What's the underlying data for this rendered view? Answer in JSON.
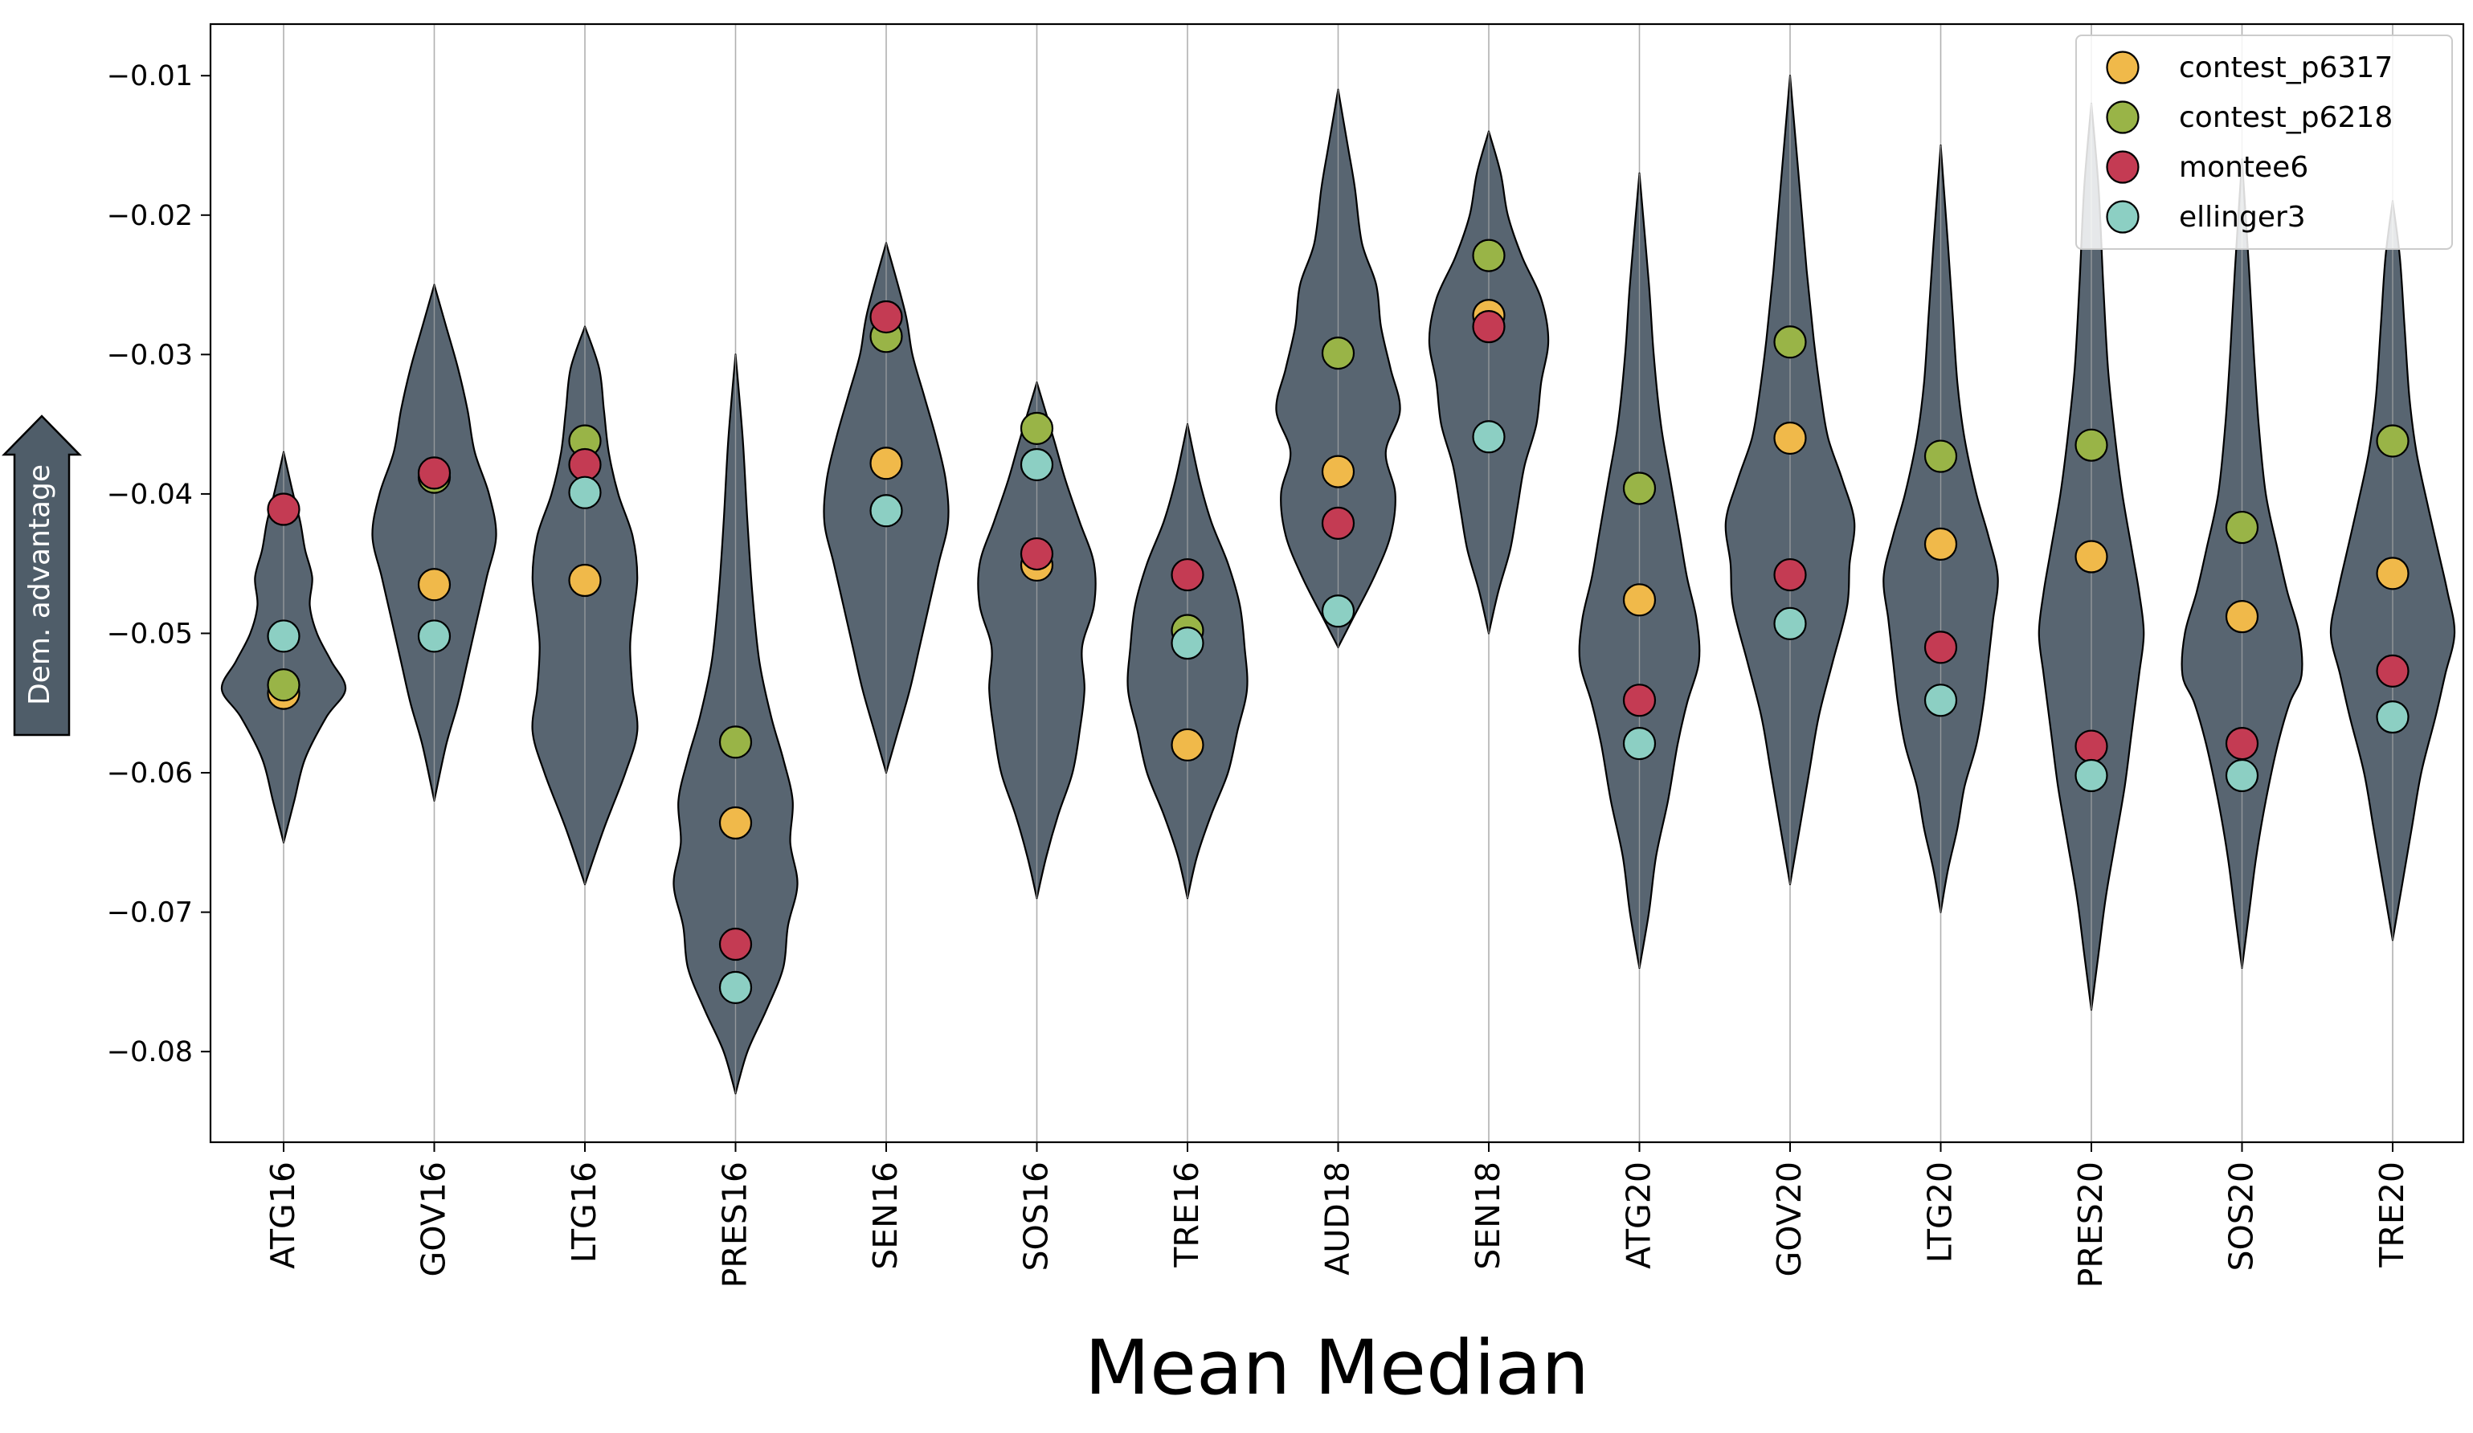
{
  "chart_data": {
    "type": "violin",
    "title": "",
    "xlabel": "Mean Median",
    "ylabel": "",
    "ylim": [
      -0.0865,
      -0.0063
    ],
    "yticks": [
      -0.01,
      -0.02,
      -0.03,
      -0.04,
      -0.05,
      -0.06,
      -0.07,
      -0.08
    ],
    "ytick_labels": [
      "−0.01",
      "−0.02",
      "−0.03",
      "−0.04",
      "−0.05",
      "−0.06",
      "−0.07",
      "−0.08"
    ],
    "grid": "vertical",
    "legend_position": "top-right",
    "direction_arrow": {
      "label": "Dem. advantage",
      "direction": "up"
    },
    "categories": [
      "ATG16",
      "GOV16",
      "LTG16",
      "PRES16",
      "SEN16",
      "SOS16",
      "TRE16",
      "AUD18",
      "SEN18",
      "ATG20",
      "GOV20",
      "LTG20",
      "PRES20",
      "SOS20",
      "TRE20"
    ],
    "distributions": [
      {
        "category": "ATG16",
        "min": -0.065,
        "max": -0.037,
        "profile": [
          [
            -0.065,
            0.0
          ],
          [
            -0.062,
            0.045
          ],
          [
            -0.059,
            0.09
          ],
          [
            -0.056,
            0.18
          ],
          [
            -0.054,
            0.26
          ],
          [
            -0.052,
            0.2
          ],
          [
            -0.05,
            0.14
          ],
          [
            -0.048,
            0.11
          ],
          [
            -0.046,
            0.12
          ],
          [
            -0.044,
            0.09
          ],
          [
            -0.042,
            0.07
          ],
          [
            -0.04,
            0.04
          ],
          [
            -0.037,
            0.0
          ]
        ]
      },
      {
        "category": "GOV16",
        "min": -0.062,
        "max": -0.025,
        "profile": [
          [
            -0.062,
            0.0
          ],
          [
            -0.058,
            0.05
          ],
          [
            -0.055,
            0.1
          ],
          [
            -0.052,
            0.14
          ],
          [
            -0.049,
            0.18
          ],
          [
            -0.046,
            0.22
          ],
          [
            -0.043,
            0.26
          ],
          [
            -0.04,
            0.23
          ],
          [
            -0.037,
            0.17
          ],
          [
            -0.034,
            0.14
          ],
          [
            -0.031,
            0.1
          ],
          [
            -0.028,
            0.05
          ],
          [
            -0.025,
            0.0
          ]
        ]
      },
      {
        "category": "LTG16",
        "min": -0.068,
        "max": -0.028,
        "profile": [
          [
            -0.068,
            0.0
          ],
          [
            -0.064,
            0.08
          ],
          [
            -0.06,
            0.17
          ],
          [
            -0.057,
            0.22
          ],
          [
            -0.054,
            0.2
          ],
          [
            -0.051,
            0.19
          ],
          [
            -0.049,
            0.2
          ],
          [
            -0.046,
            0.22
          ],
          [
            -0.043,
            0.2
          ],
          [
            -0.04,
            0.14
          ],
          [
            -0.037,
            0.1
          ],
          [
            -0.034,
            0.08
          ],
          [
            -0.031,
            0.06
          ],
          [
            -0.028,
            0.0
          ]
        ]
      },
      {
        "category": "PRES16",
        "min": -0.083,
        "max": -0.03,
        "profile": [
          [
            -0.083,
            0.0
          ],
          [
            -0.08,
            0.05
          ],
          [
            -0.077,
            0.13
          ],
          [
            -0.074,
            0.2
          ],
          [
            -0.071,
            0.22
          ],
          [
            -0.068,
            0.26
          ],
          [
            -0.065,
            0.23
          ],
          [
            -0.062,
            0.24
          ],
          [
            -0.059,
            0.2
          ],
          [
            -0.056,
            0.15
          ],
          [
            -0.052,
            0.1
          ],
          [
            -0.047,
            0.07
          ],
          [
            -0.042,
            0.05
          ],
          [
            -0.036,
            0.03
          ],
          [
            -0.03,
            0.0
          ]
        ]
      },
      {
        "category": "SEN16",
        "min": -0.06,
        "max": -0.022,
        "profile": [
          [
            -0.06,
            0.0
          ],
          [
            -0.057,
            0.05
          ],
          [
            -0.054,
            0.1
          ],
          [
            -0.051,
            0.14
          ],
          [
            -0.048,
            0.18
          ],
          [
            -0.045,
            0.22
          ],
          [
            -0.042,
            0.26
          ],
          [
            -0.039,
            0.25
          ],
          [
            -0.036,
            0.21
          ],
          [
            -0.033,
            0.16
          ],
          [
            -0.03,
            0.11
          ],
          [
            -0.027,
            0.08
          ],
          [
            -0.022,
            0.0
          ]
        ]
      },
      {
        "category": "SOS16",
        "min": -0.069,
        "max": -0.032,
        "profile": [
          [
            -0.069,
            0.0
          ],
          [
            -0.066,
            0.04
          ],
          [
            -0.063,
            0.09
          ],
          [
            -0.06,
            0.15
          ],
          [
            -0.057,
            0.18
          ],
          [
            -0.054,
            0.2
          ],
          [
            -0.051,
            0.19
          ],
          [
            -0.048,
            0.24
          ],
          [
            -0.045,
            0.24
          ],
          [
            -0.042,
            0.18
          ],
          [
            -0.039,
            0.12
          ],
          [
            -0.036,
            0.07
          ],
          [
            -0.032,
            0.0
          ]
        ]
      },
      {
        "category": "TRE16",
        "min": -0.069,
        "max": -0.035,
        "profile": [
          [
            -0.069,
            0.0
          ],
          [
            -0.066,
            0.04
          ],
          [
            -0.063,
            0.1
          ],
          [
            -0.06,
            0.17
          ],
          [
            -0.057,
            0.21
          ],
          [
            -0.054,
            0.25
          ],
          [
            -0.051,
            0.24
          ],
          [
            -0.048,
            0.22
          ],
          [
            -0.045,
            0.17
          ],
          [
            -0.042,
            0.1
          ],
          [
            -0.039,
            0.05
          ],
          [
            -0.035,
            0.0
          ]
        ]
      },
      {
        "category": "AUD18",
        "min": -0.051,
        "max": -0.011,
        "profile": [
          [
            -0.051,
            0.0
          ],
          [
            -0.049,
            0.06
          ],
          [
            -0.046,
            0.15
          ],
          [
            -0.043,
            0.22
          ],
          [
            -0.04,
            0.24
          ],
          [
            -0.037,
            0.2
          ],
          [
            -0.034,
            0.26
          ],
          [
            -0.031,
            0.22
          ],
          [
            -0.028,
            0.18
          ],
          [
            -0.025,
            0.16
          ],
          [
            -0.022,
            0.1
          ],
          [
            -0.018,
            0.07
          ],
          [
            -0.015,
            0.04
          ],
          [
            -0.011,
            0.0
          ]
        ]
      },
      {
        "category": "SEN18",
        "min": -0.05,
        "max": -0.014,
        "profile": [
          [
            -0.05,
            0.0
          ],
          [
            -0.047,
            0.04
          ],
          [
            -0.044,
            0.09
          ],
          [
            -0.041,
            0.12
          ],
          [
            -0.038,
            0.15
          ],
          [
            -0.035,
            0.2
          ],
          [
            -0.032,
            0.22
          ],
          [
            -0.029,
            0.25
          ],
          [
            -0.026,
            0.22
          ],
          [
            -0.023,
            0.14
          ],
          [
            -0.02,
            0.08
          ],
          [
            -0.017,
            0.05
          ],
          [
            -0.014,
            0.0
          ]
        ]
      },
      {
        "category": "ATG20",
        "min": -0.074,
        "max": -0.017,
        "profile": [
          [
            -0.074,
            0.0
          ],
          [
            -0.07,
            0.04
          ],
          [
            -0.066,
            0.07
          ],
          [
            -0.062,
            0.12
          ],
          [
            -0.058,
            0.16
          ],
          [
            -0.055,
            0.2
          ],
          [
            -0.052,
            0.25
          ],
          [
            -0.049,
            0.24
          ],
          [
            -0.046,
            0.2
          ],
          [
            -0.043,
            0.17
          ],
          [
            -0.039,
            0.13
          ],
          [
            -0.035,
            0.09
          ],
          [
            -0.03,
            0.06
          ],
          [
            -0.025,
            0.04
          ],
          [
            -0.017,
            0.0
          ]
        ]
      },
      {
        "category": "GOV20",
        "min": -0.068,
        "max": -0.01,
        "profile": [
          [
            -0.068,
            0.0
          ],
          [
            -0.064,
            0.04
          ],
          [
            -0.06,
            0.08
          ],
          [
            -0.056,
            0.12
          ],
          [
            -0.052,
            0.18
          ],
          [
            -0.048,
            0.24
          ],
          [
            -0.045,
            0.25
          ],
          [
            -0.042,
            0.27
          ],
          [
            -0.039,
            0.22
          ],
          [
            -0.036,
            0.16
          ],
          [
            -0.033,
            0.13
          ],
          [
            -0.029,
            0.1
          ],
          [
            -0.024,
            0.07
          ],
          [
            -0.018,
            0.04
          ],
          [
            -0.01,
            0.0
          ]
        ]
      },
      {
        "category": "LTG20",
        "min": -0.07,
        "max": -0.015,
        "profile": [
          [
            -0.07,
            0.0
          ],
          [
            -0.067,
            0.03
          ],
          [
            -0.064,
            0.07
          ],
          [
            -0.061,
            0.1
          ],
          [
            -0.058,
            0.15
          ],
          [
            -0.055,
            0.18
          ],
          [
            -0.052,
            0.2
          ],
          [
            -0.049,
            0.22
          ],
          [
            -0.046,
            0.24
          ],
          [
            -0.043,
            0.2
          ],
          [
            -0.04,
            0.15
          ],
          [
            -0.036,
            0.1
          ],
          [
            -0.032,
            0.07
          ],
          [
            -0.027,
            0.05
          ],
          [
            -0.022,
            0.03
          ],
          [
            -0.015,
            0.0
          ]
        ]
      },
      {
        "category": "PRES20",
        "min": -0.077,
        "max": -0.012,
        "profile": [
          [
            -0.077,
            0.0
          ],
          [
            -0.073,
            0.03
          ],
          [
            -0.069,
            0.06
          ],
          [
            -0.065,
            0.1
          ],
          [
            -0.061,
            0.14
          ],
          [
            -0.057,
            0.17
          ],
          [
            -0.053,
            0.2
          ],
          [
            -0.05,
            0.22
          ],
          [
            -0.047,
            0.2
          ],
          [
            -0.044,
            0.17
          ],
          [
            -0.04,
            0.13
          ],
          [
            -0.036,
            0.1
          ],
          [
            -0.031,
            0.07
          ],
          [
            -0.025,
            0.05
          ],
          [
            -0.018,
            0.03
          ],
          [
            -0.012,
            0.0
          ]
        ]
      },
      {
        "category": "SOS20",
        "min": -0.074,
        "max": -0.016,
        "profile": [
          [
            -0.074,
            0.0
          ],
          [
            -0.07,
            0.03
          ],
          [
            -0.066,
            0.06
          ],
          [
            -0.062,
            0.1
          ],
          [
            -0.058,
            0.15
          ],
          [
            -0.055,
            0.2
          ],
          [
            -0.053,
            0.25
          ],
          [
            -0.05,
            0.24
          ],
          [
            -0.047,
            0.19
          ],
          [
            -0.044,
            0.15
          ],
          [
            -0.04,
            0.1
          ],
          [
            -0.035,
            0.07
          ],
          [
            -0.03,
            0.05
          ],
          [
            -0.024,
            0.03
          ],
          [
            -0.016,
            0.0
          ]
        ]
      },
      {
        "category": "TRE20",
        "min": -0.072,
        "max": -0.019,
        "profile": [
          [
            -0.072,
            0.0
          ],
          [
            -0.068,
            0.04
          ],
          [
            -0.064,
            0.08
          ],
          [
            -0.06,
            0.12
          ],
          [
            -0.056,
            0.18
          ],
          [
            -0.053,
            0.22
          ],
          [
            -0.05,
            0.26
          ],
          [
            -0.047,
            0.23
          ],
          [
            -0.044,
            0.19
          ],
          [
            -0.041,
            0.15
          ],
          [
            -0.037,
            0.1
          ],
          [
            -0.033,
            0.07
          ],
          [
            -0.028,
            0.05
          ],
          [
            -0.023,
            0.03
          ],
          [
            -0.019,
            0.0
          ]
        ]
      }
    ],
    "series": [
      {
        "name": "contest_p6317",
        "color": "#f0b94a",
        "values": [
          -0.0543,
          -0.0465,
          -0.0462,
          -0.0636,
          -0.0378,
          -0.0451,
          -0.058,
          -0.0384,
          -0.0272,
          -0.0476,
          -0.036,
          -0.0436,
          -0.0445,
          -0.0488,
          -0.0457
        ]
      },
      {
        "name": "contest_p6218",
        "color": "#99b447",
        "values": [
          -0.0537,
          -0.0388,
          -0.0362,
          -0.0578,
          -0.0287,
          -0.0353,
          -0.0498,
          -0.0299,
          -0.0229,
          -0.0396,
          -0.0291,
          -0.0373,
          -0.0365,
          -0.0424,
          -0.0362
        ]
      },
      {
        "name": "montee6",
        "color": "#c43b53",
        "values": [
          -0.0411,
          -0.0385,
          -0.0379,
          -0.0723,
          -0.0273,
          -0.0443,
          -0.0458,
          -0.0421,
          -0.028,
          -0.0548,
          -0.0458,
          -0.051,
          -0.0581,
          -0.0579,
          -0.0527
        ]
      },
      {
        "name": "ellinger3",
        "color": "#8ccfc3",
        "values": [
          -0.0502,
          -0.0502,
          -0.0399,
          -0.0754,
          -0.0412,
          -0.0379,
          -0.0507,
          -0.0484,
          -0.0359,
          -0.0579,
          -0.0493,
          -0.0548,
          -0.0602,
          -0.0602,
          -0.056
        ]
      }
    ]
  }
}
